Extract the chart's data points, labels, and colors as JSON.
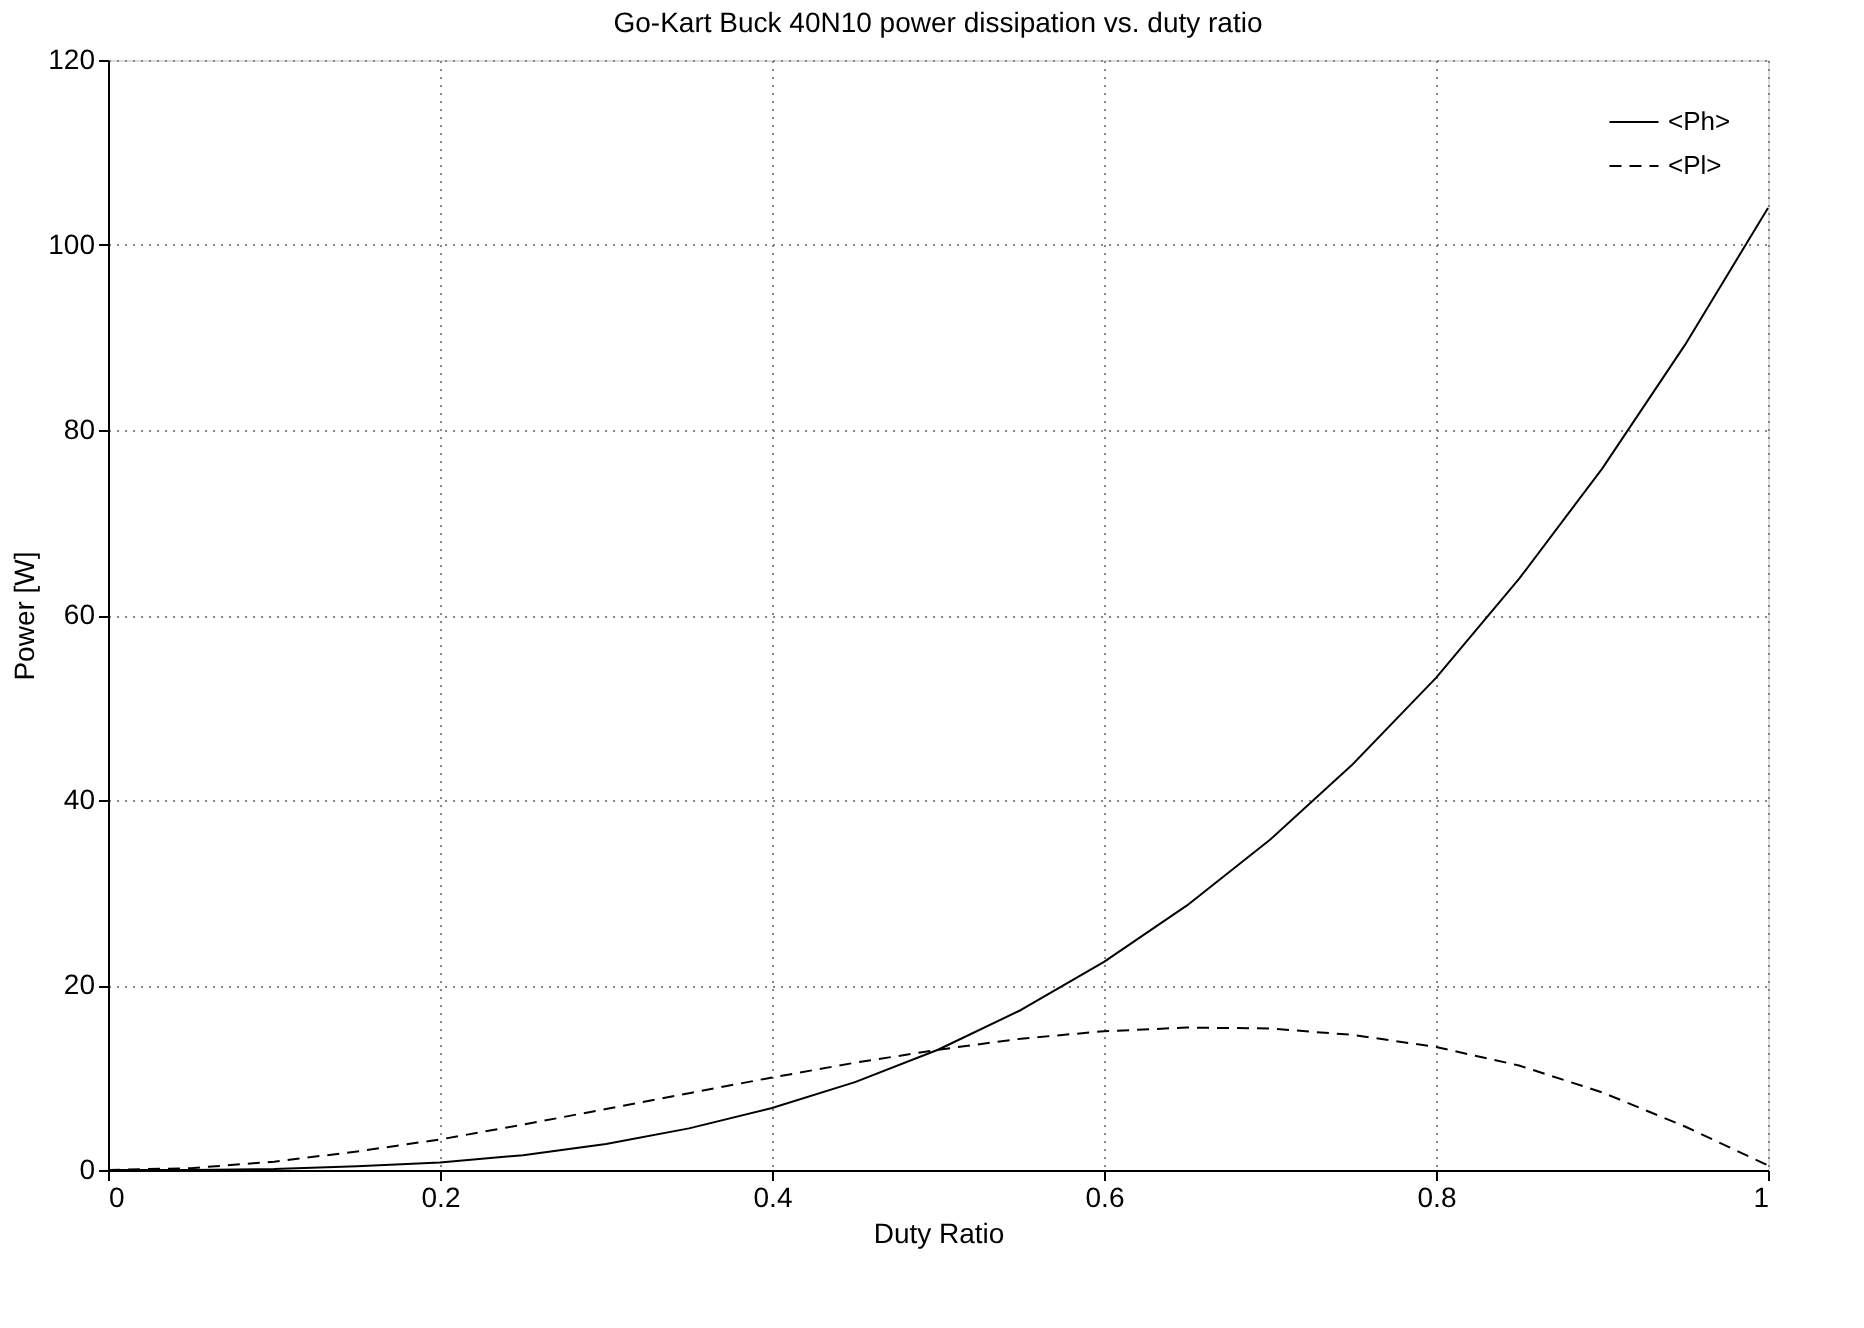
{
  "chart_data": {
    "type": "line",
    "title": "Go-Kart Buck 40N10 power dissipation vs. duty ratio",
    "xlabel": "Duty Ratio",
    "ylabel": "Power [W]",
    "x": [
      0,
      0.05,
      0.1,
      0.15,
      0.2,
      0.25,
      0.3,
      0.35,
      0.4,
      0.45,
      0.5,
      0.55,
      0.6,
      0.65,
      0.7,
      0.75,
      0.8,
      0.85,
      0.9,
      0.95,
      1
    ],
    "series": [
      {
        "name": "<Ph>",
        "color": "#000000",
        "line_style": "solid",
        "values": [
          0,
          0,
          0.1,
          0.4,
          0.8,
          1.6,
          2.8,
          4.5,
          6.7,
          9.5,
          13,
          17.3,
          22.5,
          28.6,
          35.7,
          43.9,
          53.2,
          63.9,
          75.8,
          89.2,
          104
        ]
      },
      {
        "name": "<Pl>",
        "color": "#000000",
        "line_style": "dashed",
        "values": [
          0,
          0.2,
          0.9,
          2.0,
          3.3,
          4.9,
          6.6,
          8.3,
          10.0,
          11.6,
          13.0,
          14.2,
          15.0,
          15.4,
          15.3,
          14.6,
          13.3,
          11.3,
          8.4,
          4.7,
          0.5
        ]
      }
    ],
    "xlim": [
      0,
      1
    ],
    "xticks": [
      0,
      0.2,
      0.4,
      0.6,
      0.8,
      1
    ],
    "ylim": [
      0,
      120
    ],
    "yticks": [
      0,
      20,
      40,
      60,
      80,
      100,
      120
    ],
    "grid": true,
    "legend": "top right",
    "marker": "none"
  }
}
